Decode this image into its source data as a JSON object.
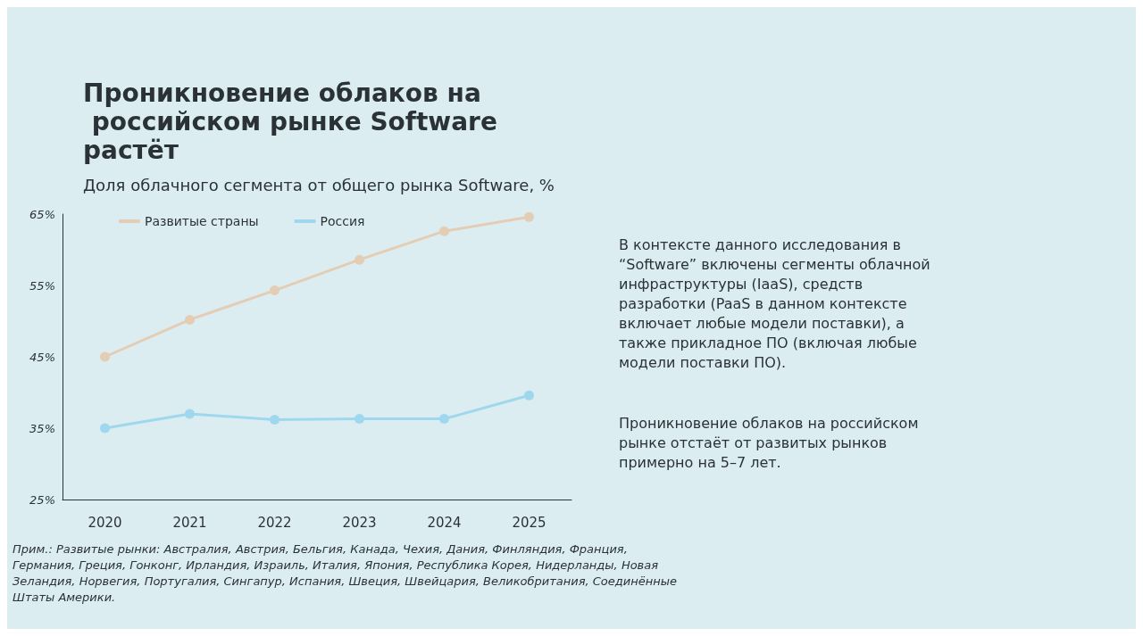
{
  "chart_data": {
    "type": "line",
    "title": "Проникновение облаков на российском рынке Software растёт",
    "subtitle": "Доля облачного сегмента от общего рынка Software, %",
    "categories": [
      "2020",
      "2021",
      "2022",
      "2023",
      "2024",
      "2025"
    ],
    "series": [
      {
        "name": "Развитые страны",
        "color": "#e3cdb4",
        "values": [
          45,
          50.2,
          54.3,
          58.6,
          62.6,
          64.6
        ]
      },
      {
        "name": "Россия",
        "color": "#9fd8ee",
        "values": [
          35,
          37,
          36.2,
          36.3,
          36.3,
          39.6
        ]
      }
    ],
    "ylim": [
      25,
      65
    ],
    "yticks": [
      {
        "value": 25,
        "label": "25%"
      },
      {
        "value": 35,
        "label": "35%"
      },
      {
        "value": 45,
        "label": "45%"
      },
      {
        "value": 55,
        "label": "55%"
      },
      {
        "value": 65,
        "label": "65%"
      }
    ],
    "grid": false,
    "legend": "top left",
    "marker": "circle",
    "line_style": "solid",
    "annotations": [
      "В контексте данного исследования в “Software” включены сегменты облачной инфраструктуры (IaaS), средств разработки (PaaS в данном контексте включает любые модели поставки), а также прикладное ПО (включая любые модели поставки ПО).",
      "Проникновение облаков на российском рынке отстаёт от развитых рынков примерно на 5–7 лет.",
      "Прим.: Развитые рынки: Австралия, Австрия, Бельгия, Канада, Чехия, Дания, Финляндия, Франция, Германия, Греция, Гонконг, Ирландия, Израиль, Италия, Япония, Республика Корея, Нидерланды, Новая Зеландия, Норвегия, Португалия, Сингапур, Испания, Швеция, Швейцария, Великобритания, Соединённые Штаты Америки."
    ]
  }
}
